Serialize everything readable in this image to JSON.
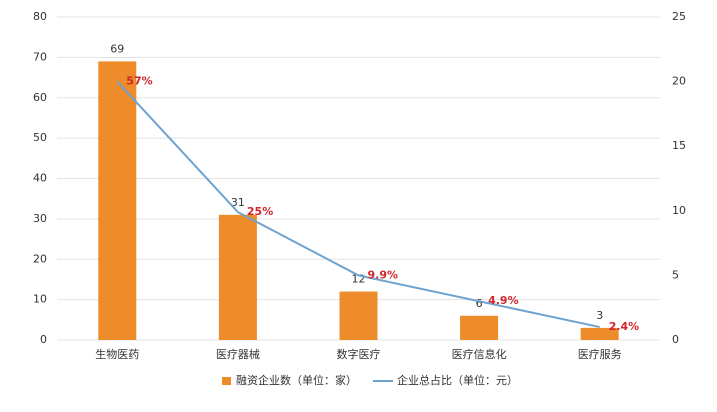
{
  "chart_data": {
    "type": "bar-line",
    "categories": [
      "生物医药",
      "医疗器械",
      "数字医疗",
      "医疗信息化",
      "医疗服务"
    ],
    "series": [
      {
        "name": "融资企业数（单位：家）",
        "type": "bar",
        "color": "#ee8b2b",
        "values": [
          69,
          31,
          12,
          6,
          3
        ]
      },
      {
        "name": "企业总占比（单位：元）",
        "type": "line",
        "axis": "y2",
        "color": "#6fa3d0",
        "values": [
          20,
          9.9,
          5,
          3,
          1
        ]
      }
    ],
    "annotations": [
      "57%",
      "25%",
      "9.9%",
      "4.9%",
      "2.4%"
    ],
    "ylim": [
      0,
      80
    ],
    "yticks": [
      0,
      10,
      20,
      30,
      40,
      50,
      60,
      70,
      80
    ],
    "y2lim": [
      0,
      25
    ],
    "y2ticks": [
      0,
      5,
      10,
      15,
      20,
      25
    ],
    "grid": true,
    "legend": "bottom"
  }
}
